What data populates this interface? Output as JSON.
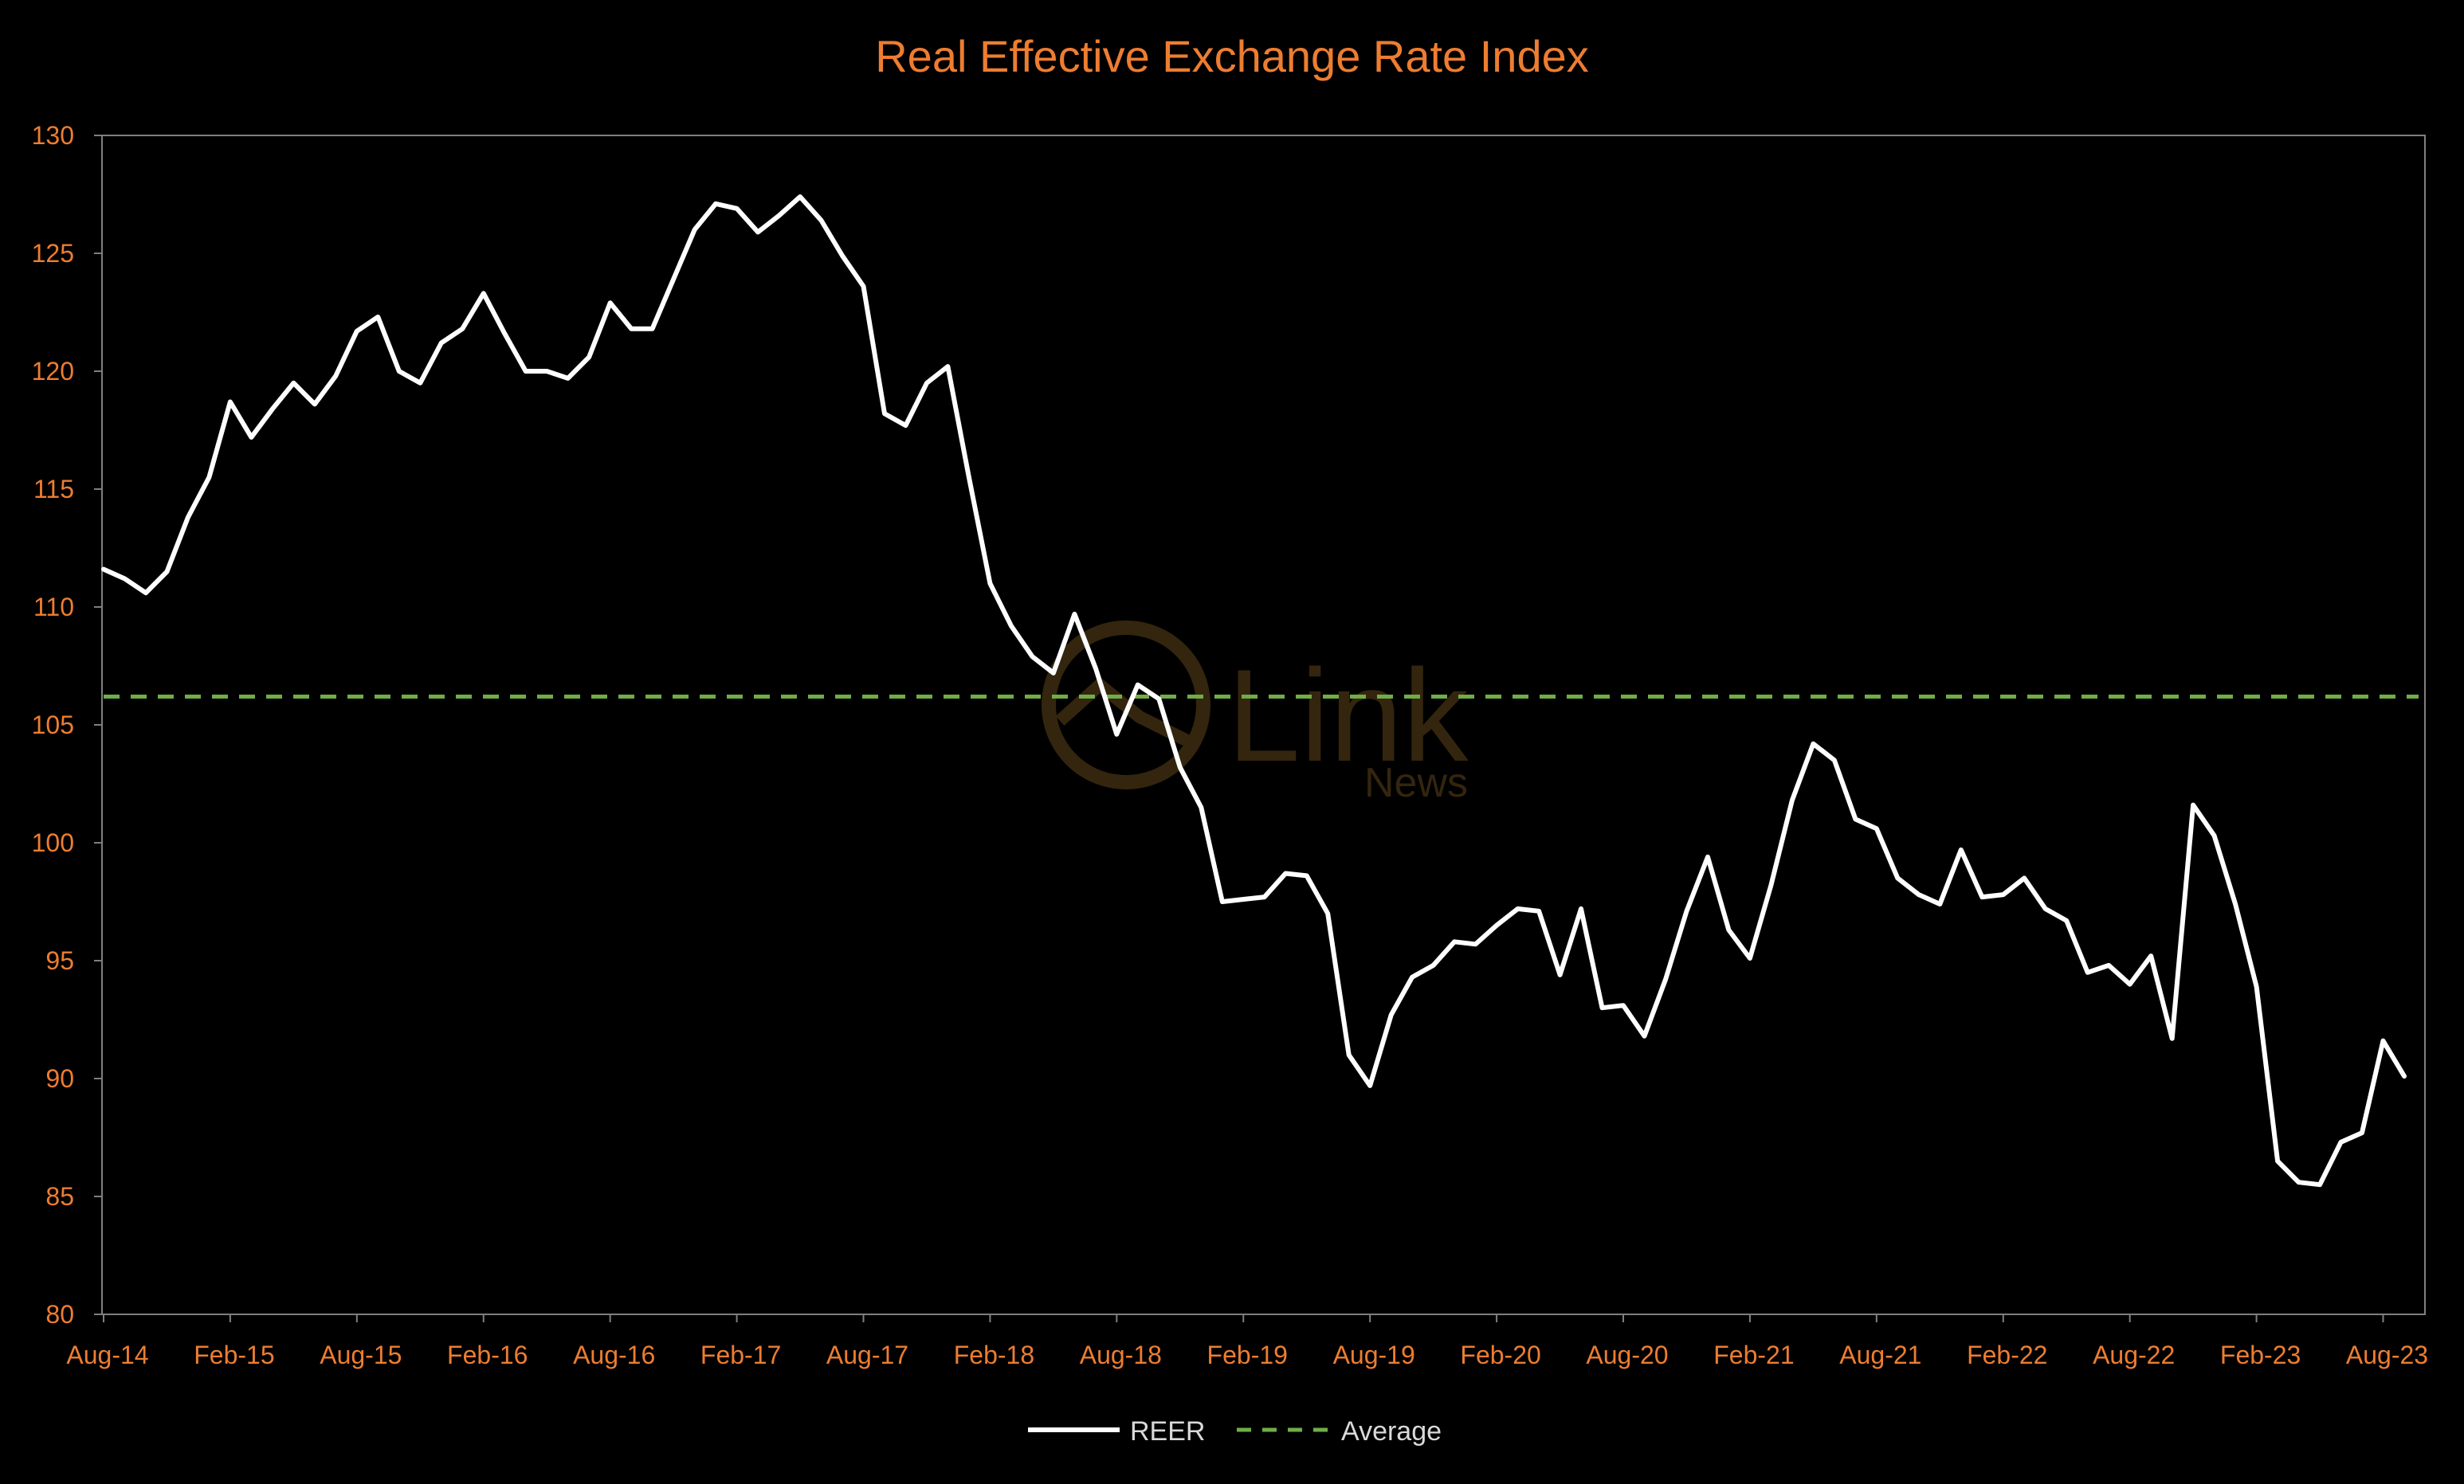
{
  "chart_data": {
    "type": "line",
    "title": "Real Effective Exchange Rate Index",
    "xlabel": "",
    "ylabel": "",
    "ylim": [
      80,
      130
    ],
    "yticks": [
      80,
      85,
      90,
      95,
      100,
      105,
      110,
      115,
      120,
      125,
      130
    ],
    "xtick_labels": [
      "Aug-14",
      "Feb-15",
      "Aug-15",
      "Feb-16",
      "Aug-16",
      "Feb-17",
      "Aug-17",
      "Feb-18",
      "Aug-18",
      "Feb-19",
      "Aug-19",
      "Feb-20",
      "Aug-20",
      "Feb-21",
      "Aug-21",
      "Feb-22",
      "Aug-22",
      "Feb-23",
      "Aug-23"
    ],
    "grid": false,
    "legend_position": "bottom",
    "series": [
      {
        "name": "REER",
        "color": "#FFFFFF",
        "style": "solid",
        "values": [
          111.6,
          111.2,
          110.6,
          111.5,
          113.8,
          115.5,
          118.7,
          117.2,
          118.4,
          119.5,
          118.6,
          119.8,
          121.7,
          122.3,
          120.0,
          119.5,
          121.2,
          121.8,
          123.3,
          121.6,
          120.0,
          120.0,
          119.7,
          120.6,
          122.9,
          121.8,
          121.8,
          123.9,
          126.0,
          127.1,
          126.9,
          125.9,
          126.6,
          127.4,
          126.4,
          124.9,
          123.6,
          118.2,
          117.7,
          119.5,
          120.2,
          115.5,
          111.0,
          109.2,
          107.9,
          107.2,
          109.7,
          107.4,
          104.6,
          106.7,
          106.1,
          103.2,
          101.5,
          97.5,
          97.6,
          97.7,
          98.7,
          98.6,
          97.0,
          91.0,
          89.7,
          92.7,
          94.3,
          94.8,
          95.8,
          95.7,
          96.5,
          97.2,
          97.1,
          94.4,
          97.2,
          93.0,
          93.1,
          91.8,
          94.2,
          97.1,
          99.4,
          96.3,
          95.1,
          98.2,
          101.8,
          104.2,
          103.5,
          101.0,
          100.6,
          98.5,
          97.8,
          97.4,
          99.7,
          97.7,
          97.8,
          98.5,
          97.2,
          96.7,
          94.5,
          94.8,
          94.0,
          95.2,
          91.7,
          101.6,
          100.3,
          97.4,
          93.9,
          86.5,
          85.6,
          85.5,
          87.3,
          87.7,
          91.6,
          90.1
        ]
      },
      {
        "name": "Average",
        "color": "#70AD47",
        "style": "dashed",
        "value": 106.2
      }
    ]
  },
  "watermark": {
    "brand": "Link",
    "sub": "News"
  }
}
